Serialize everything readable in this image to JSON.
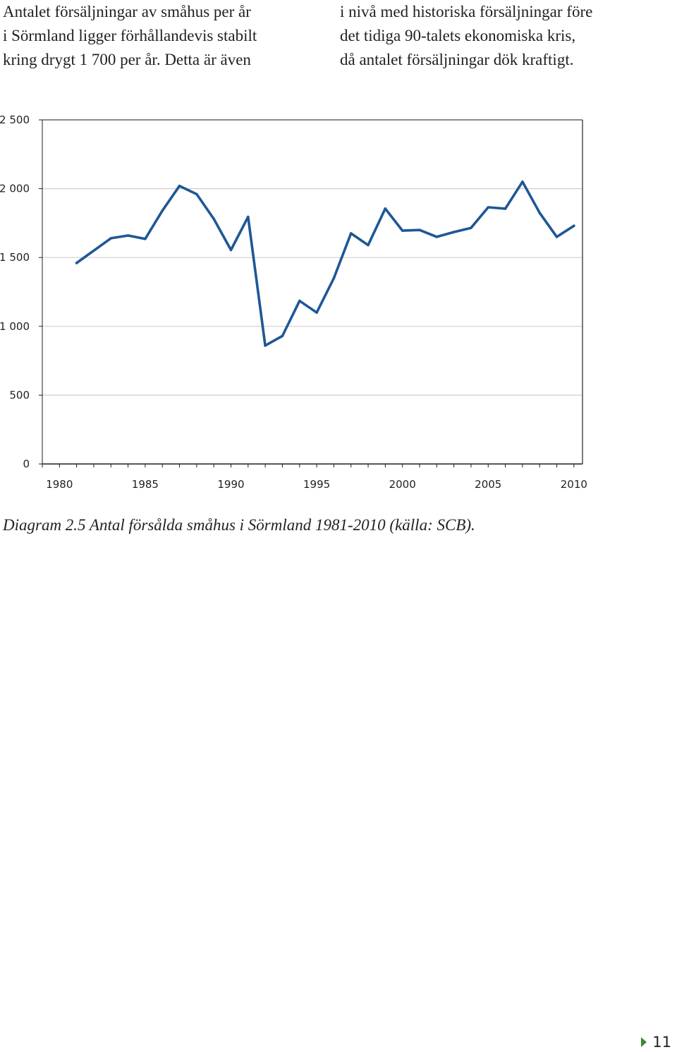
{
  "text": {
    "left_column": [
      "Antalet försäljningar av småhus per år",
      "i Sörmland ligger förhållandevis stabilt",
      "kring drygt 1 700 per år. Detta är även"
    ],
    "right_column": [
      "i nivå med historiska försäljningar före",
      "det tidiga 90-talets ekonomiska kris,",
      "då antalet försäljningar dök kraftigt."
    ]
  },
  "caption": "Diagram 2.5 Antal försålda småhus i Sörmland 1981-2010 (källa: SCB).",
  "page_number": "11",
  "colors": {
    "line": "#1f5796",
    "grid": "#cfcfcf",
    "axis": "#231f20",
    "page_arrow": "#3a8a34"
  },
  "chart_data": {
    "type": "line",
    "title": "",
    "xlabel": "",
    "ylabel": "",
    "xlim": [
      1979,
      2010.5
    ],
    "ylim": [
      0,
      2500
    ],
    "yticks": [
      0,
      500,
      1000,
      1500,
      2000,
      2500
    ],
    "ytick_labels": [
      "0",
      "500",
      "1 000",
      "1 500",
      "2 000",
      "2 500"
    ],
    "xtick_labels": [
      "1980",
      "1985",
      "1990",
      "1995",
      "2000",
      "2005",
      "2010"
    ],
    "xtick_values": [
      1980,
      1985,
      1990,
      1995,
      2000,
      2005,
      2010
    ],
    "grid": true,
    "legend": "none",
    "series": [
      {
        "x": [
          1981,
          1982,
          1983,
          1984,
          1985,
          1986,
          1987,
          1988,
          1989,
          1990,
          1991,
          1992,
          1993,
          1994,
          1995,
          1996,
          1997,
          1998,
          1999,
          2000,
          2001,
          2002,
          2003,
          2004,
          2005,
          2006,
          2007,
          2008,
          2009,
          2010
        ],
        "values": [
          1460,
          1550,
          1640,
          1660,
          1635,
          1840,
          2020,
          1960,
          1780,
          1555,
          1795,
          860,
          930,
          1185,
          1100,
          1350,
          1675,
          1590,
          1855,
          1695,
          1700,
          1650,
          1685,
          1715,
          1865,
          1855,
          2050,
          1825,
          1650,
          1730
        ]
      }
    ]
  }
}
